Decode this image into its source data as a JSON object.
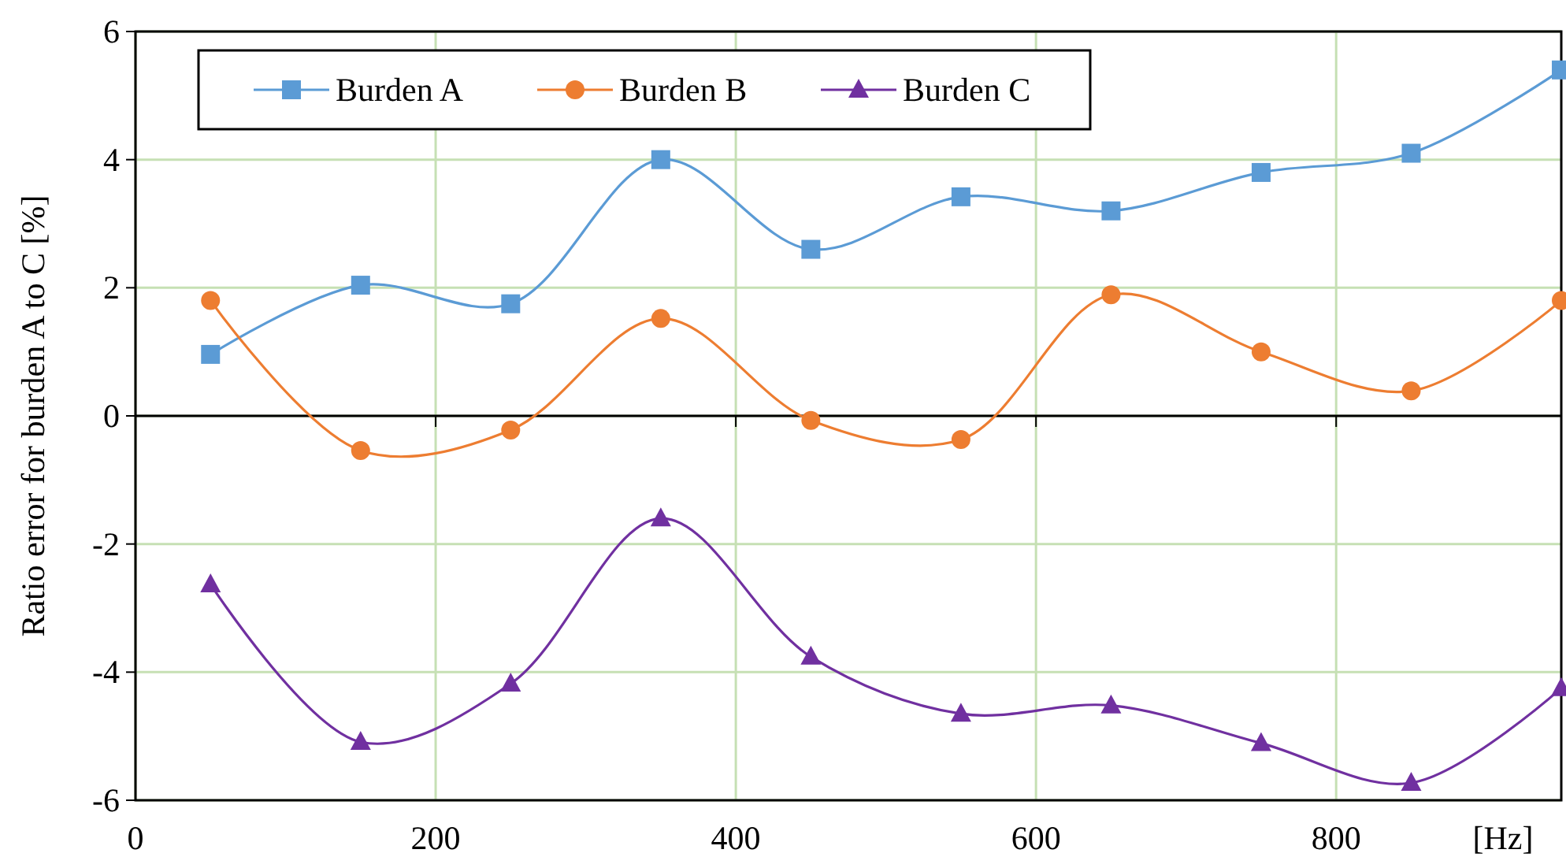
{
  "chart_data": {
    "type": "line",
    "xlabel": "[Hz]",
    "ylabel": "Ratio error for burden A to C [%]",
    "xlim": [
      0,
      950
    ],
    "xticks": [
      0,
      200,
      400,
      600,
      800
    ],
    "ylim": [
      -6,
      6
    ],
    "yticks": [
      -6,
      -4,
      -2,
      0,
      2,
      4,
      6
    ],
    "grid": true,
    "legend": "top left",
    "line_style": "solid",
    "x": [
      50,
      150,
      250,
      350,
      450,
      550,
      650,
      750,
      850,
      950
    ],
    "series": [
      {
        "name": "Burden A",
        "color": "#5b9bd5",
        "marker": "square",
        "values": [
          0.96,
          2.04,
          1.75,
          4.0,
          2.6,
          3.42,
          3.2,
          3.8,
          4.1,
          5.4
        ]
      },
      {
        "name": "Burden B",
        "color": "#ed7d31",
        "marker": "circle",
        "values": [
          1.8,
          -0.54,
          -0.22,
          1.52,
          -0.07,
          -0.37,
          1.89,
          1.0,
          0.39,
          1.8
        ]
      },
      {
        "name": "Burden C",
        "color": "#7030a0",
        "marker": "triangle",
        "values": [
          -2.63,
          -5.09,
          -4.18,
          -1.6,
          -3.76,
          -4.65,
          -4.52,
          -5.11,
          -5.73,
          -4.25
        ]
      }
    ]
  }
}
